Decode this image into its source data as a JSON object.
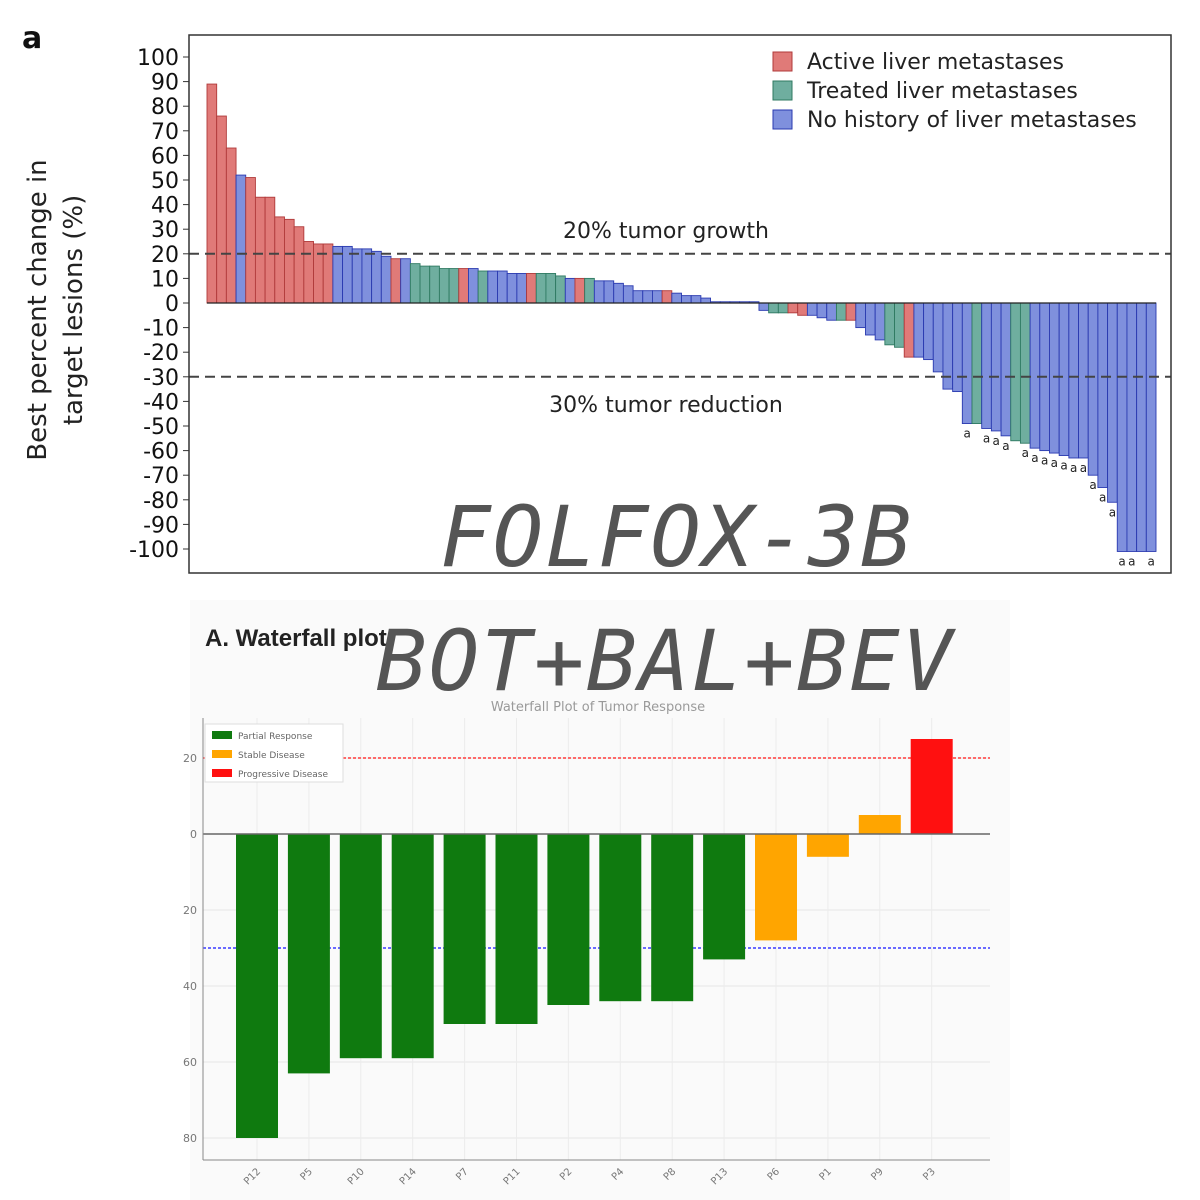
{
  "panel_label": "a",
  "overlay_texts": [
    "FOLFOX-3B",
    "BOT+BAL+BEV"
  ],
  "chart_data": [
    {
      "type": "bar",
      "subtype": "waterfall",
      "ylabel": "Best percent change in target lesions (%)",
      "ylim": [
        -110,
        110
      ],
      "yticks": [
        100,
        90,
        80,
        70,
        60,
        50,
        40,
        30,
        20,
        10,
        0,
        -10,
        -20,
        -30,
        -40,
        -50,
        -60,
        -70,
        -80,
        -90,
        -100
      ],
      "grid": false,
      "legend_position": "top-right",
      "colors": {
        "Active liver metastases": "#e07a78",
        "Treated liver metastases": "#6fae9f",
        "No history of liver metastases": "#7f90dd"
      },
      "border_colors": {
        "Active liver metastases": "#b03a3a",
        "Treated liver metastases": "#2f7a62",
        "No history of liver metastases": "#2a3ab0"
      },
      "series": [
        {
          "name": "Active liver metastases"
        },
        {
          "name": "Treated liver metastases"
        },
        {
          "name": "No history of liver metastases"
        }
      ],
      "reference_lines": [
        {
          "y": 20,
          "label": "20% tumor growth"
        },
        {
          "y": -30,
          "label": "30% tumor reduction"
        }
      ],
      "bars": [
        {
          "value": 89,
          "group": 0
        },
        {
          "value": 76,
          "group": 0
        },
        {
          "value": 63,
          "group": 0
        },
        {
          "value": 52,
          "group": 2
        },
        {
          "value": 51,
          "group": 0
        },
        {
          "value": 43,
          "group": 0
        },
        {
          "value": 43,
          "group": 0
        },
        {
          "value": 35,
          "group": 0
        },
        {
          "value": 34,
          "group": 0
        },
        {
          "value": 31,
          "group": 0
        },
        {
          "value": 25,
          "group": 0
        },
        {
          "value": 24,
          "group": 0
        },
        {
          "value": 24,
          "group": 0
        },
        {
          "value": 23,
          "group": 2
        },
        {
          "value": 23,
          "group": 2
        },
        {
          "value": 22,
          "group": 2
        },
        {
          "value": 22,
          "group": 2
        },
        {
          "value": 21,
          "group": 2
        },
        {
          "value": 19,
          "group": 2
        },
        {
          "value": 18,
          "group": 0
        },
        {
          "value": 18,
          "group": 2
        },
        {
          "value": 16,
          "group": 1
        },
        {
          "value": 15,
          "group": 1
        },
        {
          "value": 15,
          "group": 1
        },
        {
          "value": 14,
          "group": 1
        },
        {
          "value": 14,
          "group": 1
        },
        {
          "value": 14,
          "group": 0
        },
        {
          "value": 14,
          "group": 2
        },
        {
          "value": 13,
          "group": 1
        },
        {
          "value": 13,
          "group": 2
        },
        {
          "value": 13,
          "group": 2
        },
        {
          "value": 12,
          "group": 2
        },
        {
          "value": 12,
          "group": 2
        },
        {
          "value": 12,
          "group": 0
        },
        {
          "value": 12,
          "group": 1
        },
        {
          "value": 12,
          "group": 1
        },
        {
          "value": 11,
          "group": 1
        },
        {
          "value": 10,
          "group": 2
        },
        {
          "value": 10,
          "group": 0
        },
        {
          "value": 10,
          "group": 1
        },
        {
          "value": 9,
          "group": 2
        },
        {
          "value": 9,
          "group": 2
        },
        {
          "value": 8,
          "group": 2
        },
        {
          "value": 7,
          "group": 2
        },
        {
          "value": 5,
          "group": 2
        },
        {
          "value": 5,
          "group": 2
        },
        {
          "value": 5,
          "group": 2
        },
        {
          "value": 5,
          "group": 0
        },
        {
          "value": 4,
          "group": 2
        },
        {
          "value": 3,
          "group": 2
        },
        {
          "value": 3,
          "group": 2
        },
        {
          "value": 2,
          "group": 2
        },
        {
          "value": 0.5,
          "group": 2
        },
        {
          "value": 0.5,
          "group": 2
        },
        {
          "value": 0.5,
          "group": 2
        },
        {
          "value": 0.5,
          "group": 2
        },
        {
          "value": 0.5,
          "group": 2
        },
        {
          "value": -3,
          "group": 2
        },
        {
          "value": -4,
          "group": 1
        },
        {
          "value": -4,
          "group": 1
        },
        {
          "value": -4,
          "group": 0
        },
        {
          "value": -5,
          "group": 0
        },
        {
          "value": -5,
          "group": 2
        },
        {
          "value": -6,
          "group": 2
        },
        {
          "value": -7,
          "group": 2
        },
        {
          "value": -7,
          "group": 1
        },
        {
          "value": -7,
          "group": 0
        },
        {
          "value": -10,
          "group": 2
        },
        {
          "value": -13,
          "group": 2
        },
        {
          "value": -15,
          "group": 2
        },
        {
          "value": -17,
          "group": 1
        },
        {
          "value": -18,
          "group": 1
        },
        {
          "value": -22,
          "group": 0
        },
        {
          "value": -22,
          "group": 2
        },
        {
          "value": -23,
          "group": 2
        },
        {
          "value": -28,
          "group": 2
        },
        {
          "value": -35,
          "group": 2
        },
        {
          "value": -36,
          "group": 2
        },
        {
          "value": -49,
          "group": 2,
          "note": "a"
        },
        {
          "value": -49,
          "group": 1
        },
        {
          "value": -51,
          "group": 2,
          "note": "a"
        },
        {
          "value": -52,
          "group": 2,
          "note": "a"
        },
        {
          "value": -54,
          "group": 2,
          "note": "a"
        },
        {
          "value": -56,
          "group": 1
        },
        {
          "value": -57,
          "group": 1,
          "note": "a"
        },
        {
          "value": -59,
          "group": 2,
          "note": "a"
        },
        {
          "value": -60,
          "group": 2,
          "note": "a"
        },
        {
          "value": -61,
          "group": 2,
          "note": "a"
        },
        {
          "value": -62,
          "group": 2,
          "note": "a"
        },
        {
          "value": -63,
          "group": 2,
          "note": "a"
        },
        {
          "value": -63,
          "group": 2,
          "note": "a"
        },
        {
          "value": -70,
          "group": 2,
          "note": "a"
        },
        {
          "value": -75,
          "group": 2,
          "note": "a"
        },
        {
          "value": -81,
          "group": 2,
          "note": "a"
        },
        {
          "value": -101,
          "group": 2,
          "note": "a"
        },
        {
          "value": -101,
          "group": 2,
          "note": "a"
        },
        {
          "value": -101,
          "group": 2
        },
        {
          "value": -101,
          "group": 2,
          "note": "a"
        }
      ]
    },
    {
      "type": "bar",
      "subtype": "waterfall",
      "panel_title": "A. Waterfall plot",
      "title": "Waterfall Plot of Tumor Response",
      "ylim": [
        -85,
        30
      ],
      "yticks": [
        20,
        0,
        -20,
        -40,
        -60,
        -80
      ],
      "ytick_labels": [
        "20",
        "0",
        "20",
        "40",
        "60",
        "80"
      ],
      "grid": true,
      "legend_position": "top-left",
      "colors": {
        "Partial Response": "#0f7a0f",
        "Stable Disease": "#ffa500",
        "Progressive Disease": "#ff1010"
      },
      "series": [
        {
          "name": "Partial Response"
        },
        {
          "name": "Stable Disease"
        },
        {
          "name": "Progressive Disease"
        }
      ],
      "reference_lines": [
        {
          "y": 20,
          "color": "#ff6a6a"
        },
        {
          "y": -30,
          "color": "#6a6aff"
        }
      ],
      "categories": [
        "P12",
        "P5",
        "P10",
        "P14",
        "P7",
        "P11",
        "P2",
        "P4",
        "P8",
        "P13",
        "P6",
        "P1",
        "P9",
        "P3"
      ],
      "values": [
        -80,
        -63,
        -59,
        -59,
        -50,
        -50,
        -45,
        -44,
        -44,
        -33,
        -28,
        -6,
        5,
        25
      ],
      "groups": [
        0,
        0,
        0,
        0,
        0,
        0,
        0,
        0,
        0,
        0,
        1,
        1,
        1,
        2
      ]
    }
  ]
}
